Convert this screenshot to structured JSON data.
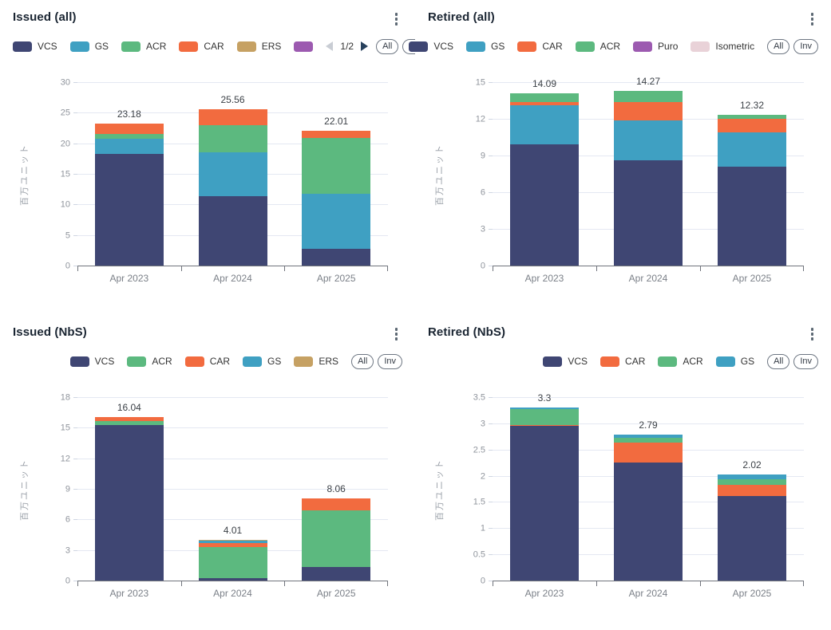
{
  "buttons": {
    "all": "All",
    "inv": "Inv"
  },
  "colors": {
    "vcs": "#3f4673",
    "gs": "#3fa0c2",
    "acr": "#5cb97f",
    "car": "#f26b3f",
    "ers": "#c6a163",
    "puro": "#9c5ab0",
    "isometric": "#e9d2d8",
    "grid": "#e4e8f2",
    "axis": "#70747c"
  },
  "chart_data": [
    {
      "id": "issued-all",
      "title": "Issued (all)",
      "type": "bar",
      "stacked": true,
      "categories": [
        "Apr 2023",
        "Apr 2024",
        "Apr 2025"
      ],
      "series": [
        {
          "name": "VCS",
          "color": "#3f4673",
          "values": [
            18.25,
            11.3,
            2.7
          ]
        },
        {
          "name": "GS",
          "color": "#3fa0c2",
          "values": [
            2.5,
            7.2,
            9.1
          ]
        },
        {
          "name": "ACR",
          "color": "#5cb97f",
          "values": [
            0.8,
            4.5,
            9.1
          ]
        },
        {
          "name": "CAR",
          "color": "#f26b3f",
          "values": [
            1.63,
            2.56,
            1.11
          ]
        }
      ],
      "totals": [
        "23.18",
        "25.56",
        "22.01"
      ],
      "ylabel": "百万ユニット",
      "ylim": [
        0,
        30
      ],
      "yticks": [
        0,
        5,
        10,
        15,
        20,
        25,
        30
      ],
      "legend": {
        "align": "left",
        "items": [
          {
            "label": "VCS",
            "color": "#3f4673"
          },
          {
            "label": "GS",
            "color": "#3fa0c2"
          },
          {
            "label": "ACR",
            "color": "#5cb97f"
          },
          {
            "label": "CAR",
            "color": "#f26b3f"
          },
          {
            "label": "ERS",
            "color": "#c6a163"
          },
          {
            "label": "",
            "color": "#9c5ab0"
          }
        ],
        "pagination": {
          "text": "1/2"
        }
      }
    },
    {
      "id": "retired-all",
      "title": "Retired (all)",
      "type": "bar",
      "stacked": true,
      "categories": [
        "Apr 2023",
        "Apr 2024",
        "Apr 2025"
      ],
      "series": [
        {
          "name": "VCS",
          "color": "#3f4673",
          "values": [
            9.9,
            8.6,
            8.1
          ]
        },
        {
          "name": "GS",
          "color": "#3fa0c2",
          "values": [
            3.2,
            3.26,
            2.78
          ]
        },
        {
          "name": "CAR",
          "color": "#f26b3f",
          "values": [
            0.3,
            1.5,
            1.1
          ]
        },
        {
          "name": "ACR",
          "color": "#5cb97f",
          "values": [
            0.69,
            0.91,
            0.34
          ]
        }
      ],
      "totals": [
        "14.09",
        "14.27",
        "12.32"
      ],
      "ylabel": "百万ユニット",
      "ylim": [
        0,
        15
      ],
      "yticks": [
        0,
        3,
        6,
        9,
        12,
        15
      ],
      "legend": {
        "align": "right",
        "items": [
          {
            "label": "VCS",
            "color": "#3f4673"
          },
          {
            "label": "GS",
            "color": "#3fa0c2"
          },
          {
            "label": "CAR",
            "color": "#f26b3f"
          },
          {
            "label": "ACR",
            "color": "#5cb97f"
          },
          {
            "label": "Puro",
            "color": "#9c5ab0"
          },
          {
            "label": "Isometric",
            "color": "#e9d2d8"
          }
        ],
        "pagination": null
      }
    },
    {
      "id": "issued-nbs",
      "title": "Issued (NbS)",
      "type": "bar",
      "stacked": true,
      "categories": [
        "Apr 2023",
        "Apr 2024",
        "Apr 2025"
      ],
      "series": [
        {
          "name": "VCS",
          "color": "#3f4673",
          "values": [
            15.3,
            0.2,
            1.3
          ]
        },
        {
          "name": "ACR",
          "color": "#5cb97f",
          "values": [
            0.36,
            3.1,
            5.6
          ]
        },
        {
          "name": "CAR",
          "color": "#f26b3f",
          "values": [
            0.38,
            0.35,
            1.16
          ]
        },
        {
          "name": "GS",
          "color": "#3fa0c2",
          "values": [
            0,
            0.3,
            0
          ]
        },
        {
          "name": "ERS",
          "color": "#c6a163",
          "values": [
            0,
            0.06,
            0
          ]
        }
      ],
      "totals": [
        "16.04",
        "4.01",
        "8.06"
      ],
      "ylabel": "百万ユニット",
      "ylim": [
        0,
        18
      ],
      "yticks": [
        0,
        3,
        6,
        9,
        12,
        15,
        18
      ],
      "legend": {
        "align": "right",
        "items": [
          {
            "label": "VCS",
            "color": "#3f4673"
          },
          {
            "label": "ACR",
            "color": "#5cb97f"
          },
          {
            "label": "CAR",
            "color": "#f26b3f"
          },
          {
            "label": "GS",
            "color": "#3fa0c2"
          },
          {
            "label": "ERS",
            "color": "#c6a163"
          }
        ],
        "pagination": null
      }
    },
    {
      "id": "retired-nbs",
      "title": "Retired (NbS)",
      "type": "bar",
      "stacked": true,
      "categories": [
        "Apr 2023",
        "Apr 2024",
        "Apr 2025"
      ],
      "series": [
        {
          "name": "VCS",
          "color": "#3f4673",
          "values": [
            2.95,
            2.26,
            1.61
          ]
        },
        {
          "name": "CAR",
          "color": "#f26b3f",
          "values": [
            0.02,
            0.37,
            0.21
          ]
        },
        {
          "name": "ACR",
          "color": "#5cb97f",
          "values": [
            0.3,
            0.1,
            0.11
          ]
        },
        {
          "name": "GS",
          "color": "#3fa0c2",
          "values": [
            0.03,
            0.06,
            0.09
          ]
        }
      ],
      "totals": [
        "3.3",
        "2.79",
        "2.02"
      ],
      "ylabel": "百万ユニット",
      "ylim": [
        0,
        3.5
      ],
      "yticks": [
        0,
        0.5,
        1,
        1.5,
        2,
        2.5,
        3,
        3.5
      ],
      "legend": {
        "align": "right",
        "items": [
          {
            "label": "VCS",
            "color": "#3f4673"
          },
          {
            "label": "CAR",
            "color": "#f26b3f"
          },
          {
            "label": "ACR",
            "color": "#5cb97f"
          },
          {
            "label": "GS",
            "color": "#3fa0c2"
          }
        ],
        "pagination": null
      }
    }
  ]
}
